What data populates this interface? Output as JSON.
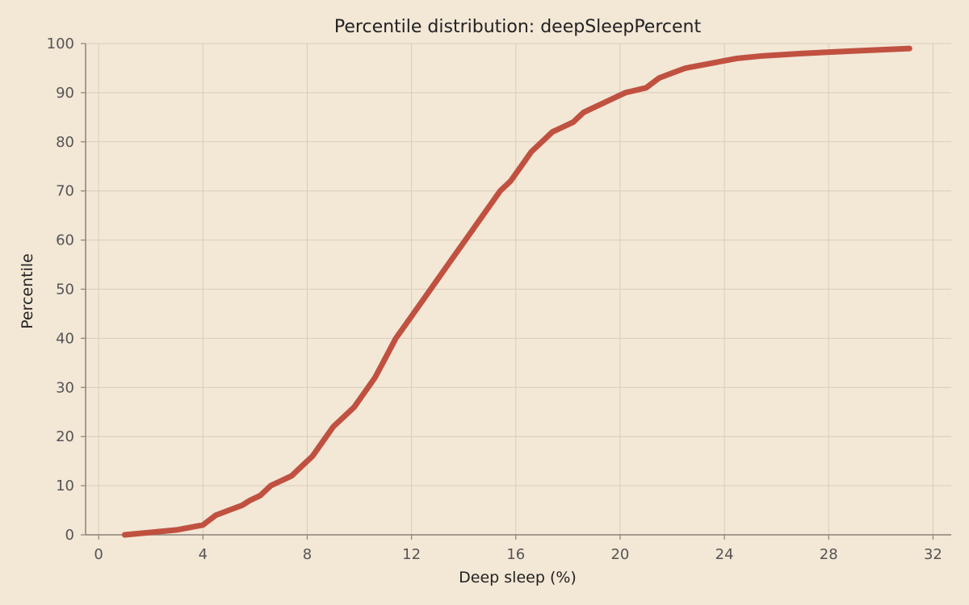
{
  "chart_data": {
    "type": "line",
    "title": "Percentile distribution: deepSleepPercent",
    "xlabel": "Deep sleep (%)",
    "ylabel": "Percentile",
    "xlim": [
      -0.5,
      32.7
    ],
    "ylim": [
      0,
      100
    ],
    "xticks": [
      0,
      4,
      8,
      12,
      16,
      20,
      24,
      28,
      32
    ],
    "yticks": [
      0,
      10,
      20,
      30,
      40,
      50,
      60,
      70,
      80,
      90,
      100
    ],
    "grid": true,
    "line_color": "#c05140",
    "series": [
      {
        "x": [
          1.0,
          2.0,
          3.0,
          4.0,
          4.5,
          5.0,
          5.5,
          5.8,
          6.2,
          6.6,
          7.0,
          7.4,
          7.8,
          8.2,
          8.6,
          9.0,
          9.4,
          9.8,
          10.2,
          10.6,
          11.0,
          11.4,
          11.8,
          12.2,
          12.6,
          13.0,
          13.4,
          13.8,
          14.2,
          14.6,
          15.0,
          15.4,
          15.8,
          16.2,
          16.6,
          17.0,
          17.4,
          17.8,
          18.2,
          18.6,
          19.0,
          19.4,
          19.8,
          20.2,
          20.6,
          21.0,
          21.5,
          22.0,
          22.5,
          23.0,
          23.5,
          24.0,
          24.5,
          25.5,
          27.0,
          29.0,
          31.1
        ],
        "y": [
          0,
          0.5,
          1,
          2,
          4,
          5,
          6,
          7,
          8,
          10,
          11,
          12,
          14,
          16,
          19,
          22,
          24,
          26,
          29,
          32,
          36,
          40,
          43,
          46,
          49,
          52,
          55,
          58,
          61,
          64,
          67,
          70,
          72,
          75,
          78,
          80,
          82,
          83,
          84,
          86,
          87,
          88,
          89,
          90,
          90.5,
          91,
          93,
          94,
          95,
          95.5,
          96,
          96.5,
          97,
          97.5,
          98,
          98.5,
          99
        ]
      }
    ]
  }
}
